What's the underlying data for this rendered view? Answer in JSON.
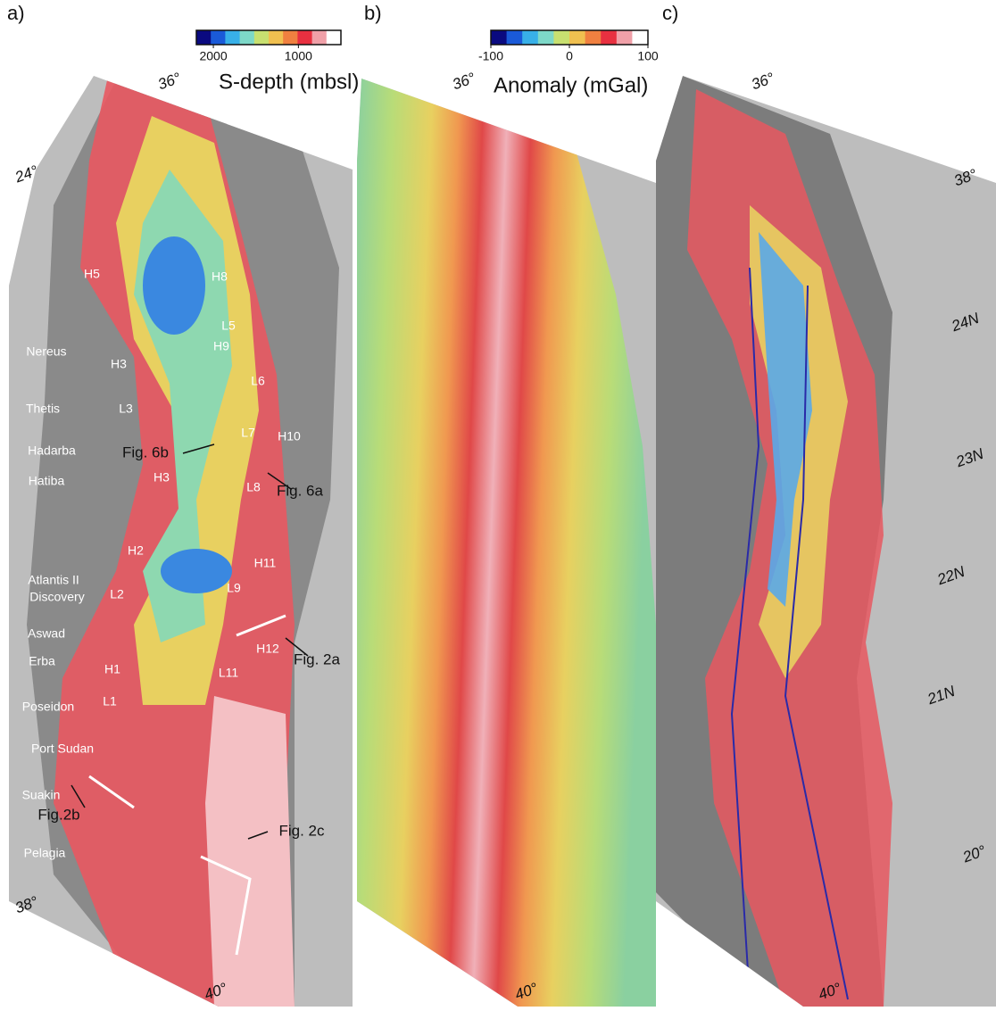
{
  "panels": [
    {
      "label": "a)",
      "colorbar": {
        "title": "S-depth (mbsl)",
        "lim": [
          2200,
          500
        ],
        "ticks": [
          2000,
          1000
        ],
        "colors": [
          "#0a0a80",
          "#1a5ad8",
          "#38b0e8",
          "#7dd8c8",
          "#c8e070",
          "#f0c050",
          "#f08040",
          "#e83040",
          "#f0a0a8",
          "#ffffff"
        ]
      },
      "graticule": [
        "36°",
        "24°",
        "38°",
        "40°"
      ],
      "features": [
        "H5",
        "H8",
        "L5",
        "H9",
        "Nereus",
        "H3",
        "L6",
        "Thetis",
        "L3",
        "L7",
        "H10",
        "Hadarba",
        "Fig. 6b",
        "H3",
        "Hatiba",
        "L8",
        "Fig. 6a",
        "H2",
        "H11",
        "L2",
        "Atlantis II",
        "Discovery",
        "L9",
        "Aswad",
        "H12",
        "Fig. 2a",
        "Erba",
        "H1",
        "L11",
        "L1",
        "Poseidon",
        "Port Sudan",
        "Suakin",
        "Fig.2b",
        "Pelagia",
        "Fig. 2c"
      ]
    },
    {
      "label": "b)",
      "colorbar": {
        "title": "Anomaly (mGal)",
        "lim": [
          -100,
          100
        ],
        "ticks": [
          -100,
          0,
          100
        ],
        "colors": [
          "#0a0a80",
          "#1a5ad8",
          "#38b0e8",
          "#7dd8c8",
          "#c8e070",
          "#f0c050",
          "#f08040",
          "#e83040",
          "#f0a0a8",
          "#ffffff"
        ]
      },
      "graticule": [
        "36°",
        "40°"
      ]
    },
    {
      "label": "c)",
      "graticule": [
        "36°",
        "38°",
        "24N",
        "23N",
        "22N",
        "21N",
        "20°",
        "40°"
      ]
    }
  ]
}
